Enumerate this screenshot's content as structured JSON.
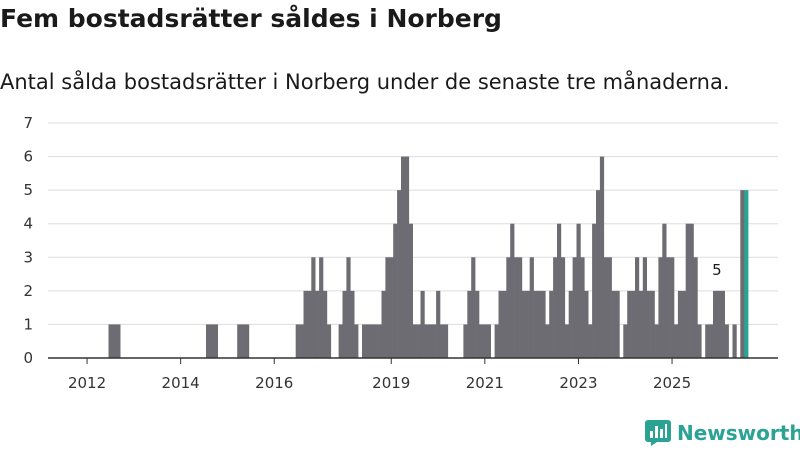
{
  "header": {
    "title": "Fem bostadsrätter såldes i Norberg",
    "subtitle": "Antal sålda bostadsrätter i Norberg under de senaste tre månaderna."
  },
  "branding": {
    "name": "Newsworthy",
    "icon": "chart-bars-icon",
    "color": "#2aa394"
  },
  "colors": {
    "bar": "#6d6c72",
    "highlight": "#2aa394",
    "grid": "#dddddd",
    "axis": "#333333"
  },
  "chart_data": {
    "type": "bar",
    "title": "Fem bostadsrätter såldes i Norberg",
    "subtitle": "Antal sålda bostadsrätter i Norberg under de senaste tre månaderna.",
    "xlabel": "",
    "ylabel": "",
    "ylim": [
      0,
      7
    ],
    "yticks": [
      0,
      1,
      2,
      3,
      4,
      5,
      6,
      7
    ],
    "x_axis": {
      "start_month": "2011-10",
      "end_month": "2026-01",
      "tick_labels": [
        "2012",
        "2014",
        "2016",
        "2019",
        "2021",
        "2023",
        "2025"
      ],
      "tick_months": [
        "2012-07",
        "2014-07",
        "2016-07",
        "2019-01",
        "2021-01",
        "2023-01",
        "2025-01"
      ]
    },
    "grid": true,
    "highlight_last": true,
    "annotation": {
      "label": "5",
      "month": "2025-12"
    },
    "series": [
      {
        "name": "Antal sålda bostadsrätter",
        "start_month": "2011-10",
        "values": [
          0,
          0,
          0,
          0,
          0,
          0,
          0,
          0,
          0,
          0,
          0,
          0,
          0,
          0,
          0,
          1,
          1,
          1,
          0,
          0,
          0,
          0,
          0,
          0,
          0,
          0,
          0,
          0,
          0,
          0,
          0,
          0,
          0,
          0,
          0,
          0,
          0,
          0,
          0,
          0,
          1,
          1,
          1,
          0,
          0,
          0,
          0,
          0,
          1,
          1,
          1,
          0,
          0,
          0,
          0,
          0,
          0,
          0,
          0,
          0,
          0,
          0,
          0,
          1,
          1,
          2,
          2,
          3,
          2,
          3,
          2,
          1,
          0,
          0,
          1,
          2,
          3,
          2,
          1,
          0,
          1,
          1,
          1,
          1,
          1,
          2,
          3,
          3,
          4,
          5,
          6,
          6,
          4,
          1,
          1,
          2,
          1,
          1,
          1,
          2,
          1,
          1,
          0,
          0,
          0,
          0,
          1,
          2,
          3,
          2,
          1,
          1,
          1,
          0,
          1,
          2,
          2,
          3,
          4,
          3,
          3,
          2,
          2,
          3,
          2,
          2,
          2,
          1,
          2,
          3,
          4,
          3,
          1,
          2,
          3,
          4,
          3,
          2,
          1,
          4,
          5,
          6,
          3,
          3,
          2,
          2,
          0,
          1,
          2,
          2,
          3,
          2,
          3,
          2,
          2,
          1,
          3,
          4,
          3,
          3,
          1,
          2,
          2,
          4,
          4,
          3,
          1,
          0,
          1,
          1,
          2,
          2,
          2,
          1,
          0,
          1,
          0,
          5,
          5
        ]
      }
    ]
  }
}
